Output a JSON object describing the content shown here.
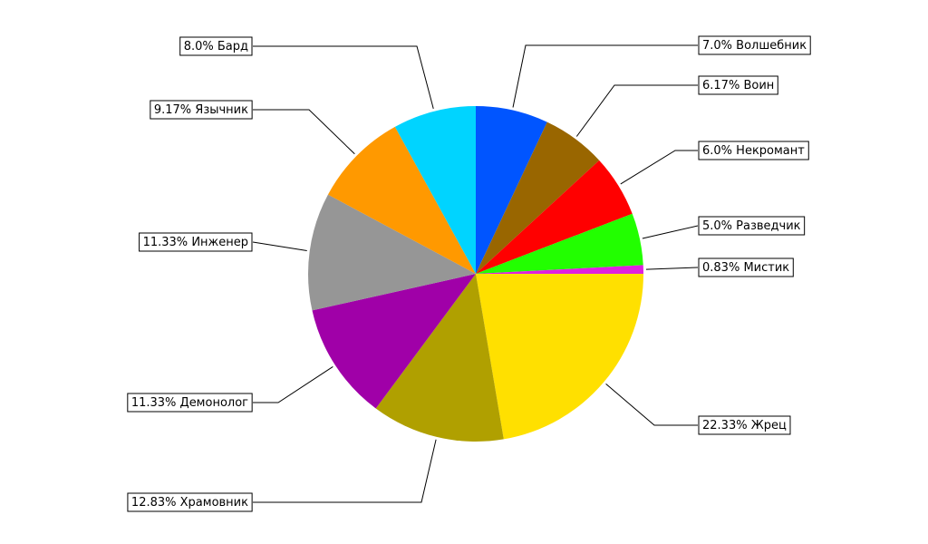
{
  "chart_data": {
    "type": "pie",
    "categories": [
      "Волшебник",
      "Воин",
      "Некромант",
      "Разведчик",
      "Мистик",
      "Жрец",
      "Храмовник",
      "Демонолог",
      "Инженер",
      "Язычник",
      "Бард"
    ],
    "values": [
      7.0,
      6.17,
      6.0,
      5.0,
      0.83,
      22.33,
      12.83,
      11.33,
      11.33,
      9.17,
      8.0
    ],
    "value_labels": [
      "7.0%",
      "6.17%",
      "6.0%",
      "5.0%",
      "0.83%",
      "22.33%",
      "12.83%",
      "11.33%",
      "11.33%",
      "9.17%",
      "8.0%"
    ],
    "colors": [
      "#0055ff",
      "#996600",
      "#ff0000",
      "#22ff00",
      "#e020e0",
      "#ffe000",
      "#b0a000",
      "#a000a8",
      "#969696",
      "#ff9900",
      "#00d4ff"
    ]
  }
}
